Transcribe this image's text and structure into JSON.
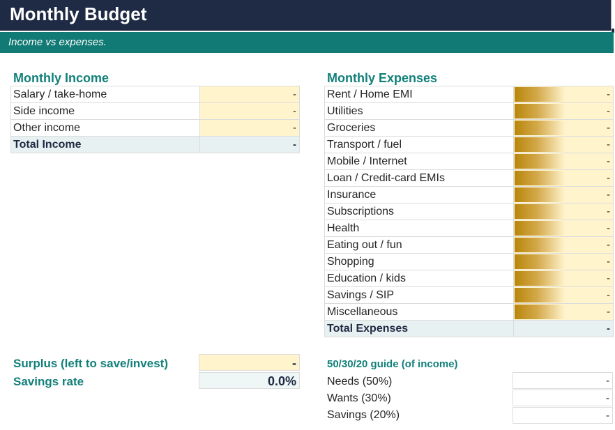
{
  "title": "Monthly Budget",
  "subtitle": "Income vs expenses.",
  "income": {
    "heading": "Monthly Income",
    "rows": [
      {
        "label": "Salary / take-home",
        "value": "-"
      },
      {
        "label": "Side income",
        "value": "-"
      },
      {
        "label": "Other income",
        "value": "-"
      }
    ],
    "total_label": "Total Income",
    "total_value": "-"
  },
  "expenses": {
    "heading": "Monthly Expenses",
    "rows": [
      {
        "label": "Rent / Home EMI",
        "value": "-"
      },
      {
        "label": "Utilities",
        "value": "-"
      },
      {
        "label": "Groceries",
        "value": "-"
      },
      {
        "label": "Transport / fuel",
        "value": "-"
      },
      {
        "label": "Mobile / Internet",
        "value": "-"
      },
      {
        "label": "Loan / Credit-card EMIs",
        "value": "-"
      },
      {
        "label": "Insurance",
        "value": "-"
      },
      {
        "label": "Subscriptions",
        "value": "-"
      },
      {
        "label": "Health",
        "value": "-"
      },
      {
        "label": "Eating out / fun",
        "value": "-"
      },
      {
        "label": "Shopping",
        "value": "-"
      },
      {
        "label": "Education / kids",
        "value": "-"
      },
      {
        "label": "Savings / SIP",
        "value": "-"
      },
      {
        "label": "Miscellaneous",
        "value": "-"
      }
    ],
    "total_label": "Total Expenses",
    "total_value": "-"
  },
  "summary": {
    "surplus_label": "Surplus (left to save/invest)",
    "surplus_value": "-",
    "savings_rate_label": "Savings rate",
    "savings_rate_value": "0.0%"
  },
  "guide": {
    "heading": "50/30/20 guide (of income)",
    "rows": [
      {
        "label": "Needs (50%)",
        "value": "-"
      },
      {
        "label": "Wants (30%)",
        "value": "-"
      },
      {
        "label": "Savings (20%)",
        "value": "-"
      }
    ]
  },
  "colors": {
    "title_bg": "#1f2a44",
    "accent": "#127a74",
    "input_fill": "#fff4cc",
    "data_bar": "#b8860b",
    "total_fill": "#e8f1f1"
  }
}
